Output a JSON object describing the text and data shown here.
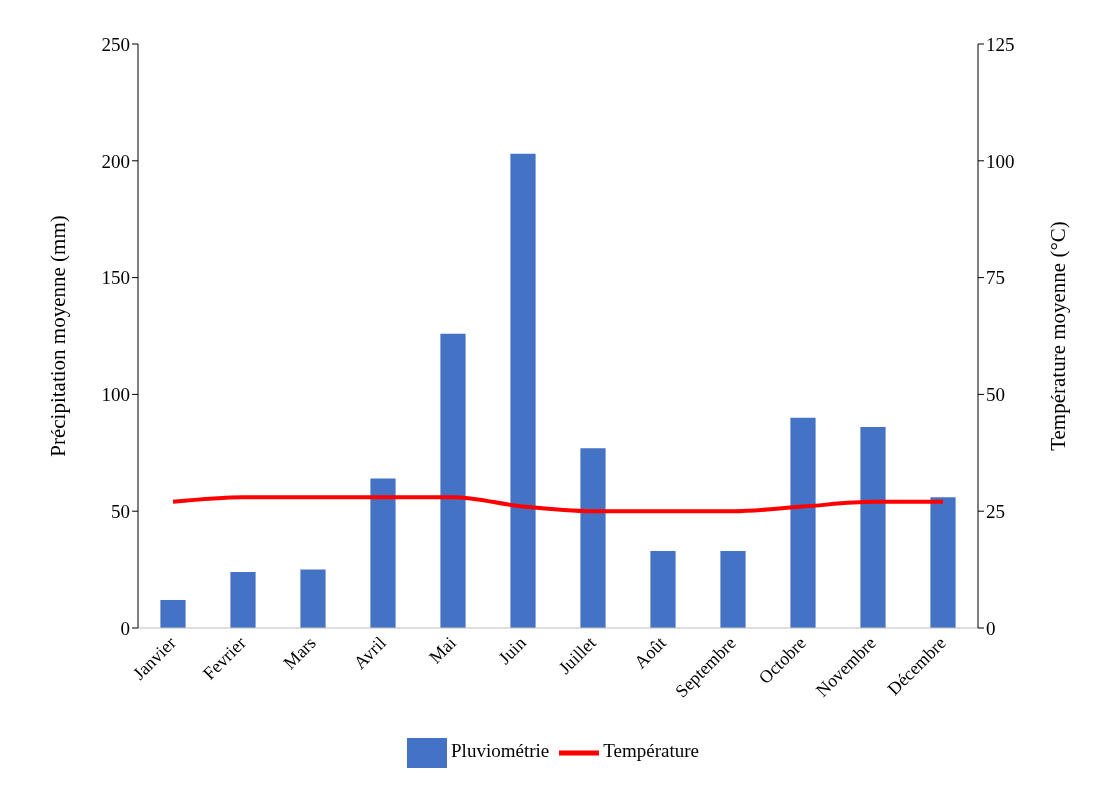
{
  "chart_data": {
    "type": "bar",
    "ylabel": "Précipitation moyenne (mm)",
    "y2label": "Température moyenne (°C)",
    "categories": [
      "Janvier",
      "Fevrier",
      "Mars",
      "Avril",
      "Mai",
      "Juin",
      "Juillet",
      "Août",
      "Septembre",
      "Octobre",
      "Novembre",
      "Décembre"
    ],
    "series": [
      {
        "name": "Pluviométrie",
        "color": "#4472c4",
        "values": [
          12,
          24,
          25,
          64,
          126,
          203,
          77,
          33,
          33,
          90,
          86,
          56
        ]
      },
      {
        "name": "Température",
        "type": "line",
        "axis": "y2",
        "color": "#ff0000",
        "values": [
          27,
          28,
          28,
          28,
          28,
          26,
          25,
          25,
          25,
          26,
          27,
          27
        ]
      }
    ],
    "ylim": [
      0,
      250
    ],
    "yticks": [
      0,
      50,
      100,
      150,
      200,
      250
    ],
    "y2lim": [
      0,
      125
    ],
    "y2ticks": [
      0,
      25,
      50,
      75,
      100,
      125
    ],
    "grid": false,
    "legend": "bottom",
    "marker": "none"
  }
}
